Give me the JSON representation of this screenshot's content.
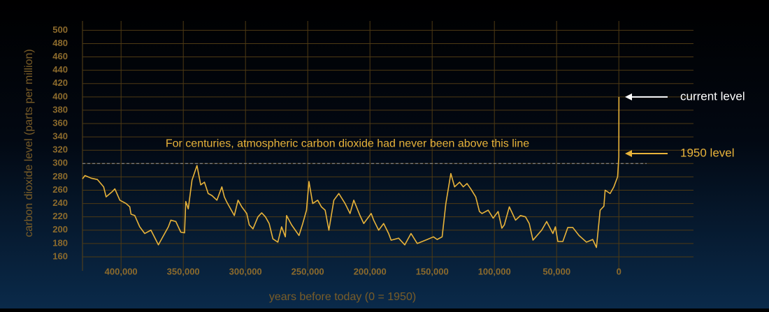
{
  "chart_data": {
    "type": "line",
    "x_label": "years before today (0 = 1950)",
    "y_label": "carbon dioxide level (parts per million)",
    "xlim": [
      431000,
      -60000
    ],
    "ylim": [
      139,
      514
    ],
    "xticks": [
      {
        "value": 400000,
        "label": "400,000"
      },
      {
        "value": 350000,
        "label": "350,000"
      },
      {
        "value": 300000,
        "label": "300,000"
      },
      {
        "value": 250000,
        "label": "250,000"
      },
      {
        "value": 200000,
        "label": "200,000"
      },
      {
        "value": 150000,
        "label": "150,000"
      },
      {
        "value": 100000,
        "label": "100,000"
      },
      {
        "value": 50000,
        "label": "50,000"
      },
      0
    ],
    "yticks": [
      160,
      180,
      200,
      220,
      240,
      260,
      280,
      300,
      320,
      340,
      360,
      380,
      400,
      420,
      440,
      460,
      480,
      500
    ],
    "grid": true,
    "reference_line": {
      "value": 300,
      "label": "For centuries, atmospheric carbon dioxide had never been above this line",
      "color": "#9a9a9a"
    },
    "annotations": [
      {
        "text": "current level",
        "y": 400,
        "color": "#ffffff"
      },
      {
        "text": "1950 level",
        "y": 315,
        "color": "#e8b33a"
      }
    ],
    "x": [
      431000,
      429000,
      424000,
      419000,
      414000,
      412000,
      407000,
      405000,
      401000,
      396000,
      393000,
      392000,
      389000,
      385000,
      381000,
      376000,
      370000,
      362000,
      360000,
      356000,
      352000,
      349000,
      348000,
      346000,
      343000,
      339000,
      336000,
      333000,
      330000,
      327000,
      323000,
      319000,
      317000,
      315000,
      309000,
      306000,
      303000,
      299000,
      297000,
      294000,
      290000,
      287000,
      284000,
      281000,
      278000,
      274000,
      271000,
      268000,
      267000,
      263000,
      257000,
      254000,
      251000,
      249000,
      246000,
      242000,
      239000,
      236000,
      233000,
      229000,
      225000,
      220000,
      216000,
      213000,
      208000,
      205000,
      199000,
      197000,
      193000,
      189000,
      185000,
      183000,
      177000,
      172000,
      167000,
      162000,
      154000,
      149000,
      146000,
      142000,
      139000,
      135000,
      132000,
      128000,
      125000,
      122000,
      119000,
      115000,
      112000,
      110000,
      105000,
      101000,
      97000,
      94000,
      92000,
      88000,
      83000,
      79000,
      75000,
      72000,
      69000,
      62000,
      58000,
      53000,
      51000,
      49000,
      45000,
      41000,
      37000,
      32000,
      26000,
      21000,
      18000,
      15000,
      12000,
      11000,
      7000,
      4000,
      1000,
      0,
      -70
    ],
    "series": [
      {
        "name": "CO2",
        "color": "#e8b33a",
        "values": [
          277,
          282,
          278,
          276,
          265,
          250,
          258,
          262,
          245,
          240,
          235,
          224,
          222,
          205,
          195,
          200,
          178,
          205,
          215,
          213,
          197,
          196,
          243,
          232,
          275,
          297,
          268,
          272,
          255,
          252,
          245,
          265,
          250,
          242,
          222,
          245,
          235,
          225,
          208,
          202,
          220,
          226,
          220,
          210,
          187,
          182,
          205,
          190,
          222,
          208,
          192,
          210,
          230,
          273,
          240,
          245,
          235,
          230,
          200,
          245,
          255,
          240,
          225,
          245,
          222,
          210,
          225,
          215,
          200,
          210,
          195,
          185,
          188,
          178,
          195,
          180,
          186,
          190,
          186,
          190,
          240,
          285,
          265,
          272,
          265,
          270,
          262,
          250,
          228,
          225,
          230,
          218,
          228,
          203,
          208,
          235,
          215,
          222,
          220,
          210,
          185,
          200,
          213,
          195,
          205,
          183,
          183,
          204,
          204,
          192,
          182,
          186,
          174,
          230,
          236,
          260,
          255,
          265,
          280,
          310,
          400
        ]
      }
    ]
  }
}
